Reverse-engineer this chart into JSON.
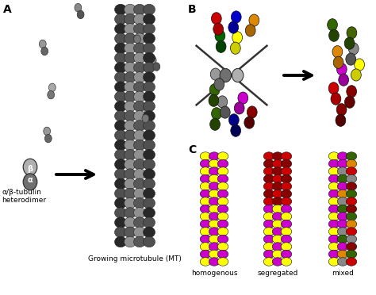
{
  "panel_A_label": "A",
  "panel_B_label": "B",
  "panel_C_label": "C",
  "mt_label": "Growing microtubule (MT)",
  "heterodimer_label": "α/β-tubulin\nheterodimer",
  "beta_label": "β",
  "alpha_label": "α",
  "C_labels": [
    "homogenous",
    "segregated",
    "mixed"
  ],
  "background": "#ffffff",
  "gray_dark": "#404040",
  "gray_mid": "#707070",
  "gray_light": "#b0b0b0",
  "mt_shade_dark": "#3a3a3a",
  "mt_shade_mid": "#686868",
  "mt_shade_light": "#909090",
  "scattered_dimers": [
    [
      100,
      14,
      "#888888",
      "#555555",
      -20
    ],
    [
      55,
      60,
      "#999999",
      "#666666",
      -15
    ],
    [
      175,
      45,
      "#aaaaaa",
      "#777777",
      25
    ],
    [
      195,
      80,
      "#888888",
      "#555555",
      -30
    ],
    [
      65,
      115,
      "#aaaaaa",
      "#777777",
      10
    ],
    [
      60,
      170,
      "#999999",
      "#666666",
      -10
    ],
    [
      185,
      145,
      "#aaaaaa",
      "#777777",
      20
    ]
  ],
  "b_dimers_left": [
    [
      274,
      30,
      "#cc0000",
      "#aa0000",
      -10
    ],
    [
      296,
      28,
      "#0000cc",
      "#000099",
      15
    ],
    [
      318,
      32,
      "#dd8800",
      "#aa6600",
      20
    ],
    [
      278,
      52,
      "#006600",
      "#004400",
      -5
    ],
    [
      298,
      54,
      "#ffff00",
      "#cccc00",
      10
    ],
    [
      274,
      100,
      "#999999",
      "#666666",
      -20
    ],
    [
      270,
      120,
      "#336600",
      "#224400",
      5
    ],
    [
      282,
      135,
      "#888888",
      "#555555",
      -15
    ],
    [
      304,
      130,
      "#cc00cc",
      "#990099",
      20
    ],
    [
      272,
      150,
      "#336600",
      "#224400",
      8
    ],
    [
      296,
      158,
      "#000088",
      "#000055",
      -10
    ],
    [
      316,
      148,
      "#880000",
      "#550000",
      15
    ]
  ],
  "b_dimers_right": [
    [
      420,
      38,
      "#336600",
      "#224400",
      -8
    ],
    [
      442,
      48,
      "#446600",
      "#224400",
      12
    ],
    [
      426,
      72,
      "#dd8800",
      "#aa6600",
      -5
    ],
    [
      444,
      68,
      "#888888",
      "#555555",
      15
    ],
    [
      432,
      94,
      "#cc00cc",
      "#990099",
      -10
    ],
    [
      451,
      88,
      "#ffff00",
      "#cccc00",
      18
    ],
    [
      422,
      118,
      "#cc0000",
      "#aa0000",
      -12
    ],
    [
      442,
      122,
      "#880000",
      "#660000",
      10
    ],
    [
      430,
      145,
      "#880000",
      "#550000",
      5
    ]
  ],
  "homo_color1": "#ffff00",
  "homo_color2": "#cc00cc",
  "seg_top1": "#cc0000",
  "seg_top2": "#880000",
  "seg_bot1": "#ffff00",
  "seg_bot2": "#cc00cc",
  "mixed_colors": [
    "#ffff00",
    "#336600",
    "#cc00cc",
    "#dd8800",
    "#888888",
    "#cc0000",
    "#880000",
    "#cc00cc",
    "#ffff00",
    "#336600",
    "#cc00cc",
    "#dd8800"
  ]
}
